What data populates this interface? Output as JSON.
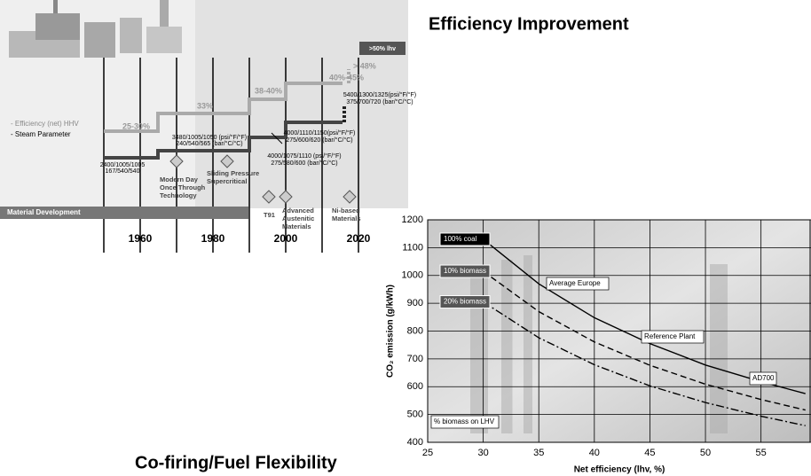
{
  "slide": {
    "title_top": "Efficiency Improvement",
    "title_bottom": "Co-firing/Fuel Flexibility"
  },
  "timeline": {
    "target_box": ">50% lhv",
    "legend": [
      "- Efficiency (net) HHV",
      "- Steam Parameter"
    ],
    "efficiency_labels": [
      "25-30%",
      "33%",
      "38-40%",
      "40%-45%",
      "> 48%"
    ],
    "parameters": [
      [
        "2400/1005/1005",
        "167/540/540"
      ],
      [
        "3480/1005/1050 (psi/°F/°F)",
        "240/540/565 (bar/°C/°C)"
      ],
      [
        "4000/1075/1110 (psi/°F/°F)",
        "275/580/600 (bar/°C/°C)"
      ],
      [
        "4000/1110/1150(psi/°F/°F)",
        "275/600/620 (bar/°C/°C)"
      ],
      [
        "5400/1300/1325(psi/°F/°F)",
        "375/700/720 (bar/°C/°C)"
      ]
    ],
    "milestones": [
      [
        "Modern Day",
        "Once Through",
        "Technology"
      ],
      [
        "Sliding Pressure",
        "Supercritical"
      ],
      [
        "T91"
      ],
      [
        "Advanced",
        "Austenitic",
        "Materials"
      ],
      [
        "Ni-based",
        "Materials"
      ]
    ],
    "material_bar": "Material Development",
    "decades": [
      "1960",
      "1980",
      "2000",
      "2020"
    ]
  },
  "chart_data": {
    "type": "line",
    "xlabel": "Net efficiency (lhv, %)",
    "ylabel": "CO₂ emission (g/kWh)",
    "x": [
      30,
      35,
      40,
      45,
      50,
      55,
      59
    ],
    "series": [
      {
        "name": "100% coal",
        "color": "#000000",
        "line_style": "solid",
        "values": [
          1130,
          970,
          848,
          755,
          678,
          618,
          575
        ]
      },
      {
        "name": "10% biomass",
        "color": "#000000",
        "line_style": "dashed",
        "values": [
          1015,
          870,
          761,
          677,
          609,
          554,
          516
        ]
      },
      {
        "name": "20% biomass",
        "color": "#000000",
        "line_style": "dashdot",
        "values": [
          905,
          776,
          679,
          603,
          543,
          494,
          460
        ]
      }
    ],
    "annotations": [
      "Average Europe",
      "Reference Plant",
      "AD700",
      "% biomass on LHV"
    ],
    "xlim": [
      25,
      59.5
    ],
    "xticks": [
      25,
      30,
      35,
      40,
      45,
      50,
      55
    ],
    "ylim": [
      400,
      1200
    ],
    "yticks": [
      400,
      500,
      600,
      700,
      800,
      900,
      1000,
      1100,
      1200
    ],
    "grid": true
  }
}
